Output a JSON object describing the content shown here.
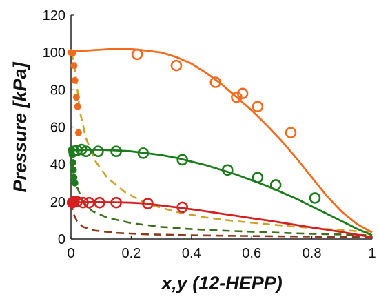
{
  "chart_data": {
    "type": "scatter",
    "xlabel": "x,y (12-HEPP)",
    "ylabel": "Pressure [kPa]",
    "xlim": [
      0,
      1
    ],
    "ylim": [
      0,
      120
    ],
    "x_ticks": [
      "0",
      "0.2",
      "0.4",
      "0.6",
      "0.8",
      "1"
    ],
    "y_ticks": [
      "0",
      "20",
      "40",
      "60",
      "80",
      "100",
      "120"
    ],
    "grid": false,
    "legend": "none",
    "series": [
      {
        "color": "#f26b1d",
        "vapor_color": "#c9a227",
        "liquid_points": [
          [
            0.22,
            99.0
          ],
          [
            0.35,
            93.0
          ],
          [
            0.48,
            84.0
          ],
          [
            0.55,
            76.0
          ],
          [
            0.57,
            78.0
          ],
          [
            0.62,
            71.0
          ],
          [
            0.73,
            57.0
          ]
        ],
        "vapor_points": [
          [
            0.0,
            100.0
          ],
          [
            0.005,
            99.5
          ],
          [
            0.01,
            93.0
          ],
          [
            0.013,
            85.0
          ],
          [
            0.018,
            76.0
          ],
          [
            0.022,
            71.0
          ],
          [
            0.025,
            57.0
          ]
        ],
        "bubble_curve": [
          [
            0.0,
            100.5
          ],
          [
            0.05,
            101.0
          ],
          [
            0.1,
            101.5
          ],
          [
            0.15,
            102.0
          ],
          [
            0.2,
            101.8
          ],
          [
            0.25,
            101.0
          ],
          [
            0.3,
            100.0
          ],
          [
            0.35,
            97.5
          ],
          [
            0.4,
            94.0
          ],
          [
            0.45,
            89.0
          ],
          [
            0.5,
            83.0
          ],
          [
            0.55,
            76.0
          ],
          [
            0.6,
            69.0
          ],
          [
            0.65,
            61.0
          ],
          [
            0.7,
            52.5
          ],
          [
            0.75,
            43.0
          ],
          [
            0.8,
            33.0
          ],
          [
            0.85,
            23.0
          ],
          [
            0.9,
            14.5
          ],
          [
            0.95,
            8.0
          ],
          [
            1.0,
            3.5
          ]
        ],
        "dew_curve": [
          [
            0.0,
            100.0
          ],
          [
            0.01,
            95.0
          ],
          [
            0.02,
            82.0
          ],
          [
            0.03,
            68.0
          ],
          [
            0.05,
            54.0
          ],
          [
            0.08,
            42.0
          ],
          [
            0.12,
            33.0
          ],
          [
            0.18,
            25.0
          ],
          [
            0.25,
            19.0
          ],
          [
            0.35,
            14.5
          ],
          [
            0.45,
            11.5
          ],
          [
            0.55,
            9.5
          ],
          [
            0.65,
            8.0
          ],
          [
            0.75,
            6.5
          ],
          [
            0.85,
            5.3
          ],
          [
            0.95,
            4.2
          ],
          [
            1.0,
            3.5
          ]
        ]
      },
      {
        "color": "#1d7a1d",
        "vapor_color": "#3d6e1d",
        "liquid_points": [
          [
            0.01,
            47.0
          ],
          [
            0.02,
            47.5
          ],
          [
            0.035,
            48.0
          ],
          [
            0.05,
            47.0
          ],
          [
            0.09,
            47.0
          ],
          [
            0.15,
            47.0
          ],
          [
            0.24,
            46.0
          ],
          [
            0.37,
            42.5
          ],
          [
            0.52,
            37.0
          ],
          [
            0.62,
            33.0
          ],
          [
            0.68,
            29.0
          ],
          [
            0.81,
            22.0
          ]
        ],
        "vapor_points": [
          [
            0.002,
            48.0
          ],
          [
            0.004,
            45.0
          ],
          [
            0.006,
            41.0
          ],
          [
            0.008,
            37.0
          ],
          [
            0.01,
            33.0
          ],
          [
            0.013,
            30.0
          ],
          [
            0.018,
            21.0
          ]
        ],
        "bubble_curve": [
          [
            0.0,
            47.5
          ],
          [
            0.05,
            47.8
          ],
          [
            0.1,
            47.8
          ],
          [
            0.15,
            47.5
          ],
          [
            0.2,
            47.0
          ],
          [
            0.25,
            46.0
          ],
          [
            0.3,
            45.0
          ],
          [
            0.35,
            43.5
          ],
          [
            0.4,
            41.5
          ],
          [
            0.45,
            39.5
          ],
          [
            0.5,
            37.0
          ],
          [
            0.55,
            34.5
          ],
          [
            0.6,
            31.5
          ],
          [
            0.65,
            28.5
          ],
          [
            0.7,
            25.0
          ],
          [
            0.75,
            21.5
          ],
          [
            0.8,
            17.5
          ],
          [
            0.85,
            13.5
          ],
          [
            0.9,
            9.5
          ],
          [
            0.95,
            5.5
          ],
          [
            1.0,
            2.0
          ]
        ],
        "dew_curve": [
          [
            0.0,
            47.5
          ],
          [
            0.005,
            42.0
          ],
          [
            0.01,
            36.0
          ],
          [
            0.02,
            28.0
          ],
          [
            0.04,
            20.0
          ],
          [
            0.07,
            15.0
          ],
          [
            0.12,
            11.5
          ],
          [
            0.2,
            8.5
          ],
          [
            0.3,
            6.5
          ],
          [
            0.4,
            5.3
          ],
          [
            0.5,
            4.5
          ],
          [
            0.6,
            3.9
          ],
          [
            0.7,
            3.3
          ],
          [
            0.8,
            2.8
          ],
          [
            0.9,
            2.4
          ],
          [
            1.0,
            2.0
          ]
        ]
      },
      {
        "color": "#d42020",
        "vapor_color": "#8a3a1d",
        "liquid_points": [
          [
            0.005,
            19.5
          ],
          [
            0.01,
            20.0
          ],
          [
            0.02,
            20.0
          ],
          [
            0.04,
            19.5
          ],
          [
            0.06,
            19.5
          ],
          [
            0.095,
            19.5
          ],
          [
            0.15,
            19.5
          ],
          [
            0.255,
            19.0
          ],
          [
            0.37,
            17.0
          ]
        ],
        "vapor_points": [
          [
            0.0,
            20.0
          ],
          [
            0.003,
            20.5
          ],
          [
            0.005,
            19.0
          ]
        ],
        "bubble_curve": [
          [
            0.0,
            19.5
          ],
          [
            0.05,
            19.8
          ],
          [
            0.1,
            19.8
          ],
          [
            0.15,
            19.7
          ],
          [
            0.2,
            19.5
          ],
          [
            0.25,
            19.0
          ],
          [
            0.3,
            18.0
          ],
          [
            0.35,
            17.0
          ],
          [
            0.4,
            16.0
          ],
          [
            0.45,
            14.8
          ],
          [
            0.5,
            13.6
          ],
          [
            0.55,
            12.4
          ],
          [
            0.6,
            11.2
          ],
          [
            0.65,
            10.0
          ],
          [
            0.7,
            8.8
          ],
          [
            0.75,
            7.5
          ],
          [
            0.8,
            6.2
          ],
          [
            0.85,
            5.0
          ],
          [
            0.9,
            3.7
          ],
          [
            0.95,
            2.3
          ],
          [
            1.0,
            1.0
          ]
        ],
        "dew_curve": [
          [
            0.0,
            19.5
          ],
          [
            0.005,
            16.0
          ],
          [
            0.01,
            13.0
          ],
          [
            0.02,
            9.5
          ],
          [
            0.04,
            6.5
          ],
          [
            0.08,
            4.5
          ],
          [
            0.15,
            3.3
          ],
          [
            0.25,
            2.5
          ],
          [
            0.4,
            2.0
          ],
          [
            0.6,
            1.6
          ],
          [
            0.8,
            1.3
          ],
          [
            1.0,
            1.0
          ]
        ]
      }
    ]
  }
}
